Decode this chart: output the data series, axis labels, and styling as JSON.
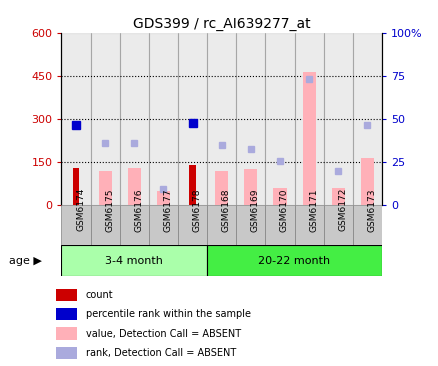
{
  "title": "GDS399 / rc_AI639277_at",
  "categories": [
    "GSM6174",
    "GSM6175",
    "GSM6176",
    "GSM6177",
    "GSM6178",
    "GSM6168",
    "GSM6169",
    "GSM6170",
    "GSM6171",
    "GSM6172",
    "GSM6173"
  ],
  "groups": [
    {
      "label": "3-4 month",
      "n": 5,
      "color": "#AAFFAA"
    },
    {
      "label": "20-22 month",
      "n": 6,
      "color": "#44EE44"
    }
  ],
  "count_values": [
    130,
    0,
    0,
    0,
    140,
    0,
    0,
    0,
    0,
    0,
    0
  ],
  "rank_values": [
    280,
    0,
    0,
    0,
    285,
    0,
    0,
    0,
    0,
    0,
    0
  ],
  "absent_value_bars": [
    0,
    120,
    130,
    50,
    0,
    120,
    125,
    60,
    465,
    60,
    165
  ],
  "absent_rank_bars": [
    0,
    215,
    215,
    55,
    0,
    210,
    195,
    155,
    440,
    120,
    280
  ],
  "ylim_left": [
    0,
    600
  ],
  "ylim_right": [
    0,
    100
  ],
  "yticks_left": [
    0,
    150,
    300,
    450,
    600
  ],
  "yticks_right": [
    0,
    25,
    50,
    75,
    100
  ],
  "ytick_labels_left": [
    "0",
    "150",
    "300",
    "450",
    "600"
  ],
  "ytick_labels_right": [
    "0",
    "25",
    "50",
    "75",
    "100%"
  ],
  "count_color": "#CC0000",
  "rank_color": "#0000CC",
  "absent_value_color": "#FFB0B8",
  "absent_rank_color": "#AAAADD",
  "bar_bg_color": "#C8C8C8",
  "age_label": "age",
  "legend_items": [
    {
      "color": "#CC0000",
      "label": "count"
    },
    {
      "color": "#0000CC",
      "label": "percentile rank within the sample"
    },
    {
      "color": "#FFB0B8",
      "label": "value, Detection Call = ABSENT"
    },
    {
      "color": "#AAAADD",
      "label": "rank, Detection Call = ABSENT"
    }
  ]
}
